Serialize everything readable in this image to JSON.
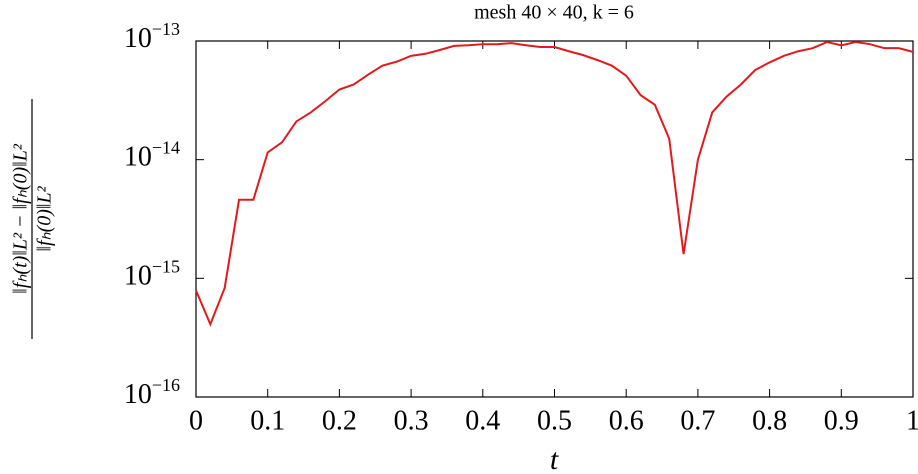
{
  "chart_data": {
    "type": "line",
    "title": "mesh 40 × 40, k = 6",
    "x_label": "t",
    "y_label": {
      "numerator": "‖fₕ(t)‖L² − ‖fₕ(0)‖L²",
      "denominator": "‖fₕ(0)‖L²"
    },
    "y_scale": "log",
    "color": "#e31a1c",
    "x": [
      0,
      0.02,
      0.04,
      0.06,
      0.08,
      0.1,
      0.12,
      0.14,
      0.16,
      0.18,
      0.2,
      0.22,
      0.24,
      0.26,
      0.28,
      0.3,
      0.32,
      0.34,
      0.36,
      0.38,
      0.4,
      0.42,
      0.44,
      0.46,
      0.48,
      0.5,
      0.52,
      0.54,
      0.56,
      0.58,
      0.6,
      0.62,
      0.64,
      0.66,
      0.68,
      0.7,
      0.72,
      0.74,
      0.76,
      0.78,
      0.8,
      0.82,
      0.84,
      0.86,
      0.88,
      0.9,
      0.92,
      0.94,
      0.96,
      0.98,
      1
    ],
    "values": [
      7.9e-16,
      4.1e-16,
      8.3e-16,
      4.6e-15,
      4.6e-15,
      1.15e-14,
      1.4e-14,
      2.1e-14,
      2.5e-14,
      3.1e-14,
      3.9e-14,
      4.3e-14,
      5.2e-14,
      6.2e-14,
      6.7e-14,
      7.5e-14,
      7.8e-14,
      8.4e-14,
      9.1e-14,
      9.2e-14,
      9.4e-14,
      9.4e-14,
      9.6e-14,
      9.2e-14,
      8.9e-14,
      8.9e-14,
      8.2e-14,
      7.6e-14,
      6.9e-14,
      6.2e-14,
      5.1e-14,
      3.5e-14,
      2.9e-14,
      1.5e-14,
      1.6e-15,
      1e-14,
      2.5e-14,
      3.4e-14,
      4.3e-14,
      5.7e-14,
      6.6e-14,
      7.5e-14,
      8.2e-14,
      8.7e-14,
      9.8e-14,
      9.2e-14,
      9.8e-14,
      9.4e-14,
      8.7e-14,
      8.7e-14,
      8.1e-14
    ],
    "xlim": [
      0,
      1
    ],
    "xticks": [
      0,
      0.1,
      0.2,
      0.3,
      0.4,
      0.5,
      0.6,
      0.7,
      0.8,
      0.9,
      1
    ],
    "ylim": [
      1e-16,
      1e-13
    ],
    "yticks": [
      {
        "value": 1e-16,
        "label": "10−16"
      },
      {
        "value": 1e-15,
        "label": "10−15"
      },
      {
        "value": 1e-14,
        "label": "10−14"
      },
      {
        "value": 1e-13,
        "label": "10−13"
      }
    ]
  }
}
